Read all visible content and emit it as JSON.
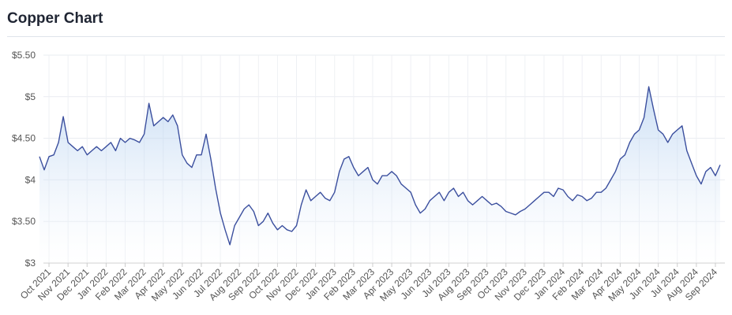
{
  "chart_data": {
    "type": "line",
    "title": "Copper Chart",
    "color": "#3b4f9e",
    "grid": true,
    "ylim": [
      3,
      5.5
    ],
    "yticks": [
      {
        "value": 3,
        "label": "$3"
      },
      {
        "value": 3.5,
        "label": "$3.50"
      },
      {
        "value": 4,
        "label": "$4"
      },
      {
        "value": 4.5,
        "label": "$4.50"
      },
      {
        "value": 5,
        "label": "$5"
      },
      {
        "value": 5.5,
        "label": "$5.50"
      }
    ],
    "categories": [
      null,
      null,
      "Oct 2021",
      null,
      null,
      null,
      "Nov 2021",
      null,
      null,
      null,
      "Dec 2021",
      null,
      null,
      null,
      "Jan 2022",
      null,
      null,
      null,
      "Feb 2022",
      null,
      null,
      null,
      "Mar 2022",
      null,
      null,
      null,
      "Apr 2022",
      null,
      null,
      null,
      "May 2022",
      null,
      null,
      null,
      "Jun 2022",
      null,
      null,
      null,
      "Jul 2022",
      null,
      null,
      null,
      "Aug 2022",
      null,
      null,
      null,
      "Sep 2022",
      null,
      null,
      null,
      "Oct 2022",
      null,
      null,
      null,
      "Nov 2022",
      null,
      null,
      null,
      "Dec 2022",
      null,
      null,
      null,
      "Jan 2023",
      null,
      null,
      null,
      "Feb 2023",
      null,
      null,
      null,
      "Mar 2023",
      null,
      null,
      null,
      "Apr 2023",
      null,
      null,
      null,
      "May 2023",
      null,
      null,
      null,
      "Jun 2023",
      null,
      null,
      null,
      "Jul 2023",
      null,
      null,
      null,
      "Aug 2023",
      null,
      null,
      null,
      "Sep 2023",
      null,
      null,
      null,
      "Oct 2023",
      null,
      null,
      null,
      "Nov 2023",
      null,
      null,
      null,
      "Dec 2023",
      null,
      null,
      null,
      "Jan 2024",
      null,
      null,
      null,
      "Feb 2024",
      null,
      null,
      null,
      "Mar 2024",
      null,
      null,
      null,
      "Apr 2024",
      null,
      null,
      null,
      "May 2024",
      null,
      null,
      null,
      "Jun 2024",
      null,
      null,
      null,
      "Jul 2024",
      null,
      null,
      null,
      "Aug 2024",
      null,
      null,
      null,
      "Sep 2024",
      null
    ],
    "values": [
      4.28,
      4.12,
      4.28,
      4.3,
      4.45,
      4.76,
      4.45,
      4.4,
      4.35,
      4.4,
      4.3,
      4.35,
      4.4,
      4.35,
      4.4,
      4.45,
      4.35,
      4.5,
      4.45,
      4.5,
      4.48,
      4.45,
      4.55,
      4.92,
      4.65,
      4.7,
      4.75,
      4.7,
      4.78,
      4.65,
      4.3,
      4.2,
      4.15,
      4.3,
      4.3,
      4.55,
      4.25,
      3.9,
      3.6,
      3.4,
      3.22,
      3.45,
      3.55,
      3.65,
      3.7,
      3.62,
      3.45,
      3.5,
      3.6,
      3.48,
      3.4,
      3.45,
      3.4,
      3.38,
      3.45,
      3.7,
      3.88,
      3.75,
      3.8,
      3.85,
      3.78,
      3.75,
      3.85,
      4.1,
      4.25,
      4.28,
      4.15,
      4.05,
      4.1,
      4.15,
      4.0,
      3.95,
      4.05,
      4.05,
      4.1,
      4.05,
      3.95,
      3.9,
      3.85,
      3.7,
      3.6,
      3.65,
      3.75,
      3.8,
      3.85,
      3.75,
      3.85,
      3.9,
      3.8,
      3.85,
      3.75,
      3.7,
      3.75,
      3.8,
      3.75,
      3.7,
      3.72,
      3.68,
      3.62,
      3.6,
      3.58,
      3.62,
      3.65,
      3.7,
      3.75,
      3.8,
      3.85,
      3.85,
      3.8,
      3.9,
      3.88,
      3.8,
      3.75,
      3.82,
      3.8,
      3.75,
      3.78,
      3.85,
      3.85,
      3.9,
      4.0,
      4.1,
      4.25,
      4.3,
      4.45,
      4.55,
      4.6,
      4.75,
      5.12,
      4.85,
      4.6,
      4.55,
      4.45,
      4.55,
      4.6,
      4.65,
      4.35,
      4.2,
      4.05,
      3.95,
      4.1,
      4.15,
      4.05,
      4.18
    ]
  }
}
